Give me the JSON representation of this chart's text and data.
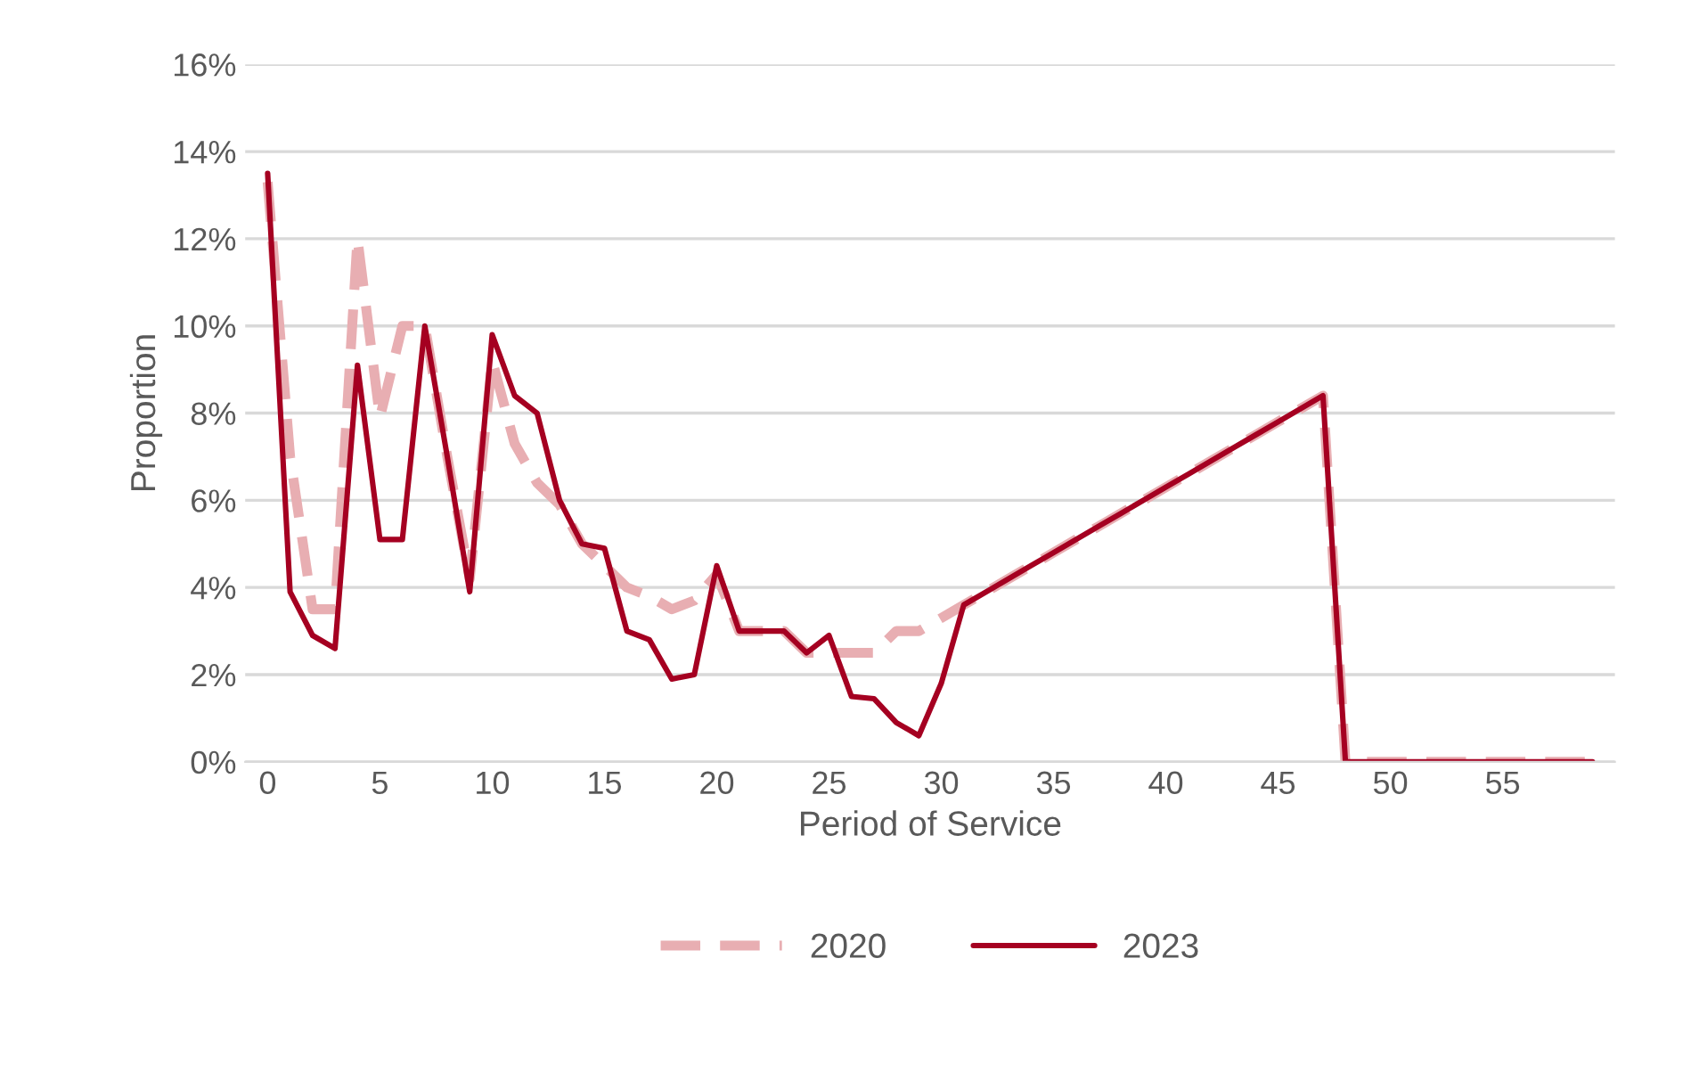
{
  "chart_data": {
    "type": "line",
    "xlabel": "Period of Service",
    "ylabel": "Proportion",
    "x": [
      0,
      1,
      2,
      3,
      4,
      5,
      6,
      7,
      8,
      9,
      10,
      11,
      12,
      13,
      14,
      15,
      16,
      17,
      18,
      19,
      20,
      21,
      22,
      23,
      24,
      25,
      26,
      27,
      28,
      29,
      30,
      31,
      32,
      33,
      34,
      35,
      36,
      37,
      38,
      39,
      40,
      41,
      42,
      43,
      44,
      45,
      46,
      47,
      48,
      49,
      50,
      51,
      52,
      53,
      54,
      55,
      56,
      57,
      58,
      59
    ],
    "series": [
      {
        "name": "2020",
        "color": "#e8aeb2",
        "line_style": "dashed",
        "values": [
          13.3,
          7.0,
          3.5,
          3.5,
          12.0,
          7.9,
          10.0,
          10.0,
          7.0,
          4.2,
          9.2,
          7.3,
          6.4,
          5.9,
          5.0,
          4.5,
          4.0,
          3.8,
          3.5,
          3.7,
          4.3,
          3.0,
          3.0,
          3.0,
          2.5,
          2.5,
          2.5,
          2.5,
          3.0,
          3.0,
          3.3,
          3.6,
          3.9,
          4.2,
          4.5,
          4.8,
          5.1,
          5.4,
          5.7,
          6.0,
          6.3,
          6.6,
          6.9,
          7.2,
          7.5,
          7.8,
          8.1,
          8.4,
          0,
          0,
          0,
          0,
          0,
          0,
          0,
          0,
          0,
          0,
          0,
          0
        ]
      },
      {
        "name": "2023",
        "color": "#a50021",
        "line_style": "solid",
        "values": [
          13.5,
          3.9,
          2.9,
          2.6,
          9.1,
          5.1,
          5.1,
          10.0,
          7.0,
          3.9,
          9.8,
          8.4,
          8.0,
          6.0,
          5.0,
          4.9,
          3.0,
          2.8,
          1.9,
          2.0,
          4.5,
          3.0,
          3.0,
          3.0,
          2.5,
          2.9,
          1.5,
          1.45,
          0.9,
          0.6,
          1.8,
          3.6,
          3.9,
          4.2,
          4.5,
          4.8,
          5.1,
          5.4,
          5.7,
          6.0,
          6.3,
          6.6,
          6.9,
          7.2,
          7.5,
          7.8,
          8.1,
          8.4,
          0,
          0,
          0,
          0,
          0,
          0,
          0,
          0,
          0,
          0,
          0,
          0
        ]
      }
    ],
    "xlim": [
      -1,
      60
    ],
    "xticks": [
      0,
      5,
      10,
      15,
      20,
      25,
      30,
      35,
      40,
      45,
      50,
      55
    ],
    "ylim": [
      0,
      16
    ],
    "yticks": [
      {
        "value": 0,
        "label": "0%"
      },
      {
        "value": 2,
        "label": "2%"
      },
      {
        "value": 4,
        "label": "4%"
      },
      {
        "value": 6,
        "label": "6%"
      },
      {
        "value": 8,
        "label": "8%"
      },
      {
        "value": 10,
        "label": "10%"
      },
      {
        "value": 12,
        "label": "12%"
      },
      {
        "value": 14,
        "label": "14%"
      },
      {
        "value": 16,
        "label": "16%"
      }
    ],
    "grid": "y",
    "legend": "bottom"
  }
}
